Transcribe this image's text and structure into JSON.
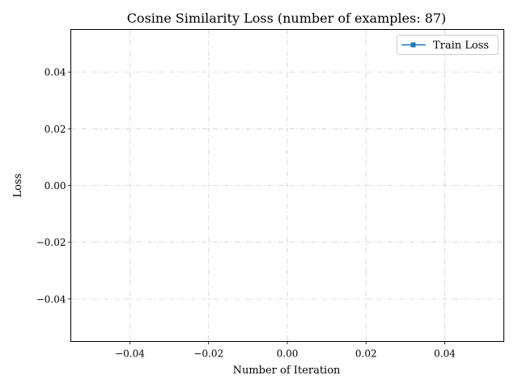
{
  "chart_data": {
    "type": "line",
    "title": "Cosine Similarity Loss (number of examples: 87)",
    "xlabel": "Number of Iteration",
    "ylabel": "Loss",
    "xlim": [
      -0.055,
      0.055
    ],
    "ylim": [
      -0.055,
      0.055
    ],
    "x_ticks": [
      -0.04,
      -0.02,
      0.0,
      0.02,
      0.04
    ],
    "y_ticks": [
      -0.04,
      -0.02,
      0.0,
      0.02,
      0.04
    ],
    "x_tick_labels": [
      "−0.04",
      "−0.02",
      "0.00",
      "0.02",
      "0.04"
    ],
    "y_tick_labels": [
      "−0.04",
      "−0.02",
      "0.00",
      "0.02",
      "0.04"
    ],
    "grid": true,
    "legend_position": "top-right",
    "series": [
      {
        "name": "Train Loss",
        "x": [],
        "values": [],
        "color": "#1f77b4",
        "marker": "square"
      }
    ]
  }
}
